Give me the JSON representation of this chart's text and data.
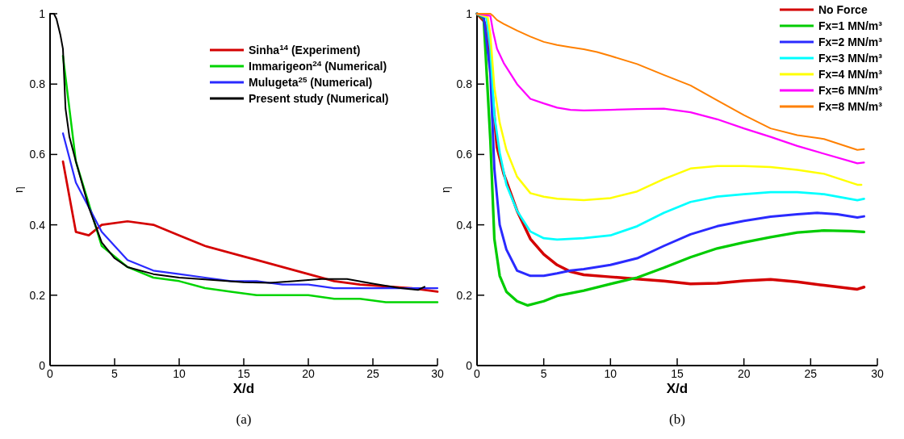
{
  "chart_data": [
    {
      "type": "line",
      "xlabel": "X/d",
      "ylabel": "η",
      "annotations": [
        "(a)"
      ],
      "xlim": [
        0,
        30
      ],
      "ylim": [
        0,
        1
      ],
      "xticks": [
        0,
        5,
        10,
        15,
        20,
        25,
        30
      ],
      "yticks": [
        0,
        0.2,
        0.4,
        0.6,
        0.8,
        1
      ],
      "grid": false,
      "legend": "top right",
      "marker": "none",
      "line_style": "solid",
      "series": [
        {
          "name": "Sinha$^{14}$ (Experiment)",
          "color": "#d40000",
          "x": [
            1,
            2,
            3,
            4,
            6,
            8,
            10,
            12,
            15,
            16,
            18,
            20,
            22,
            24,
            26,
            28,
            30
          ],
          "values": [
            0.58,
            0.38,
            0.37,
            0.4,
            0.41,
            0.4,
            0.37,
            0.34,
            0.31,
            0.3,
            0.28,
            0.26,
            0.24,
            0.23,
            0.225,
            0.22,
            0.21
          ]
        },
        {
          "name": "Immarigeon$^{24}$ (Numerical)",
          "color": "#00d400",
          "x": [
            1,
            2,
            3,
            4,
            6,
            8,
            10,
            12,
            14,
            16,
            18,
            20,
            22,
            24,
            26,
            28,
            30
          ],
          "values": [
            0.88,
            0.58,
            0.46,
            0.34,
            0.28,
            0.25,
            0.24,
            0.22,
            0.21,
            0.2,
            0.2,
            0.2,
            0.19,
            0.19,
            0.18,
            0.18,
            0.18
          ]
        },
        {
          "name": "Mulugeta$^{25}$ (Numerical)",
          "color": "#2a2aff",
          "x": [
            1,
            2,
            3,
            4,
            6,
            8,
            10,
            12,
            14,
            16,
            18,
            20,
            22,
            24,
            26,
            28,
            30
          ],
          "values": [
            0.66,
            0.52,
            0.45,
            0.38,
            0.3,
            0.27,
            0.26,
            0.25,
            0.24,
            0.24,
            0.23,
            0.23,
            0.22,
            0.22,
            0.22,
            0.22,
            0.22
          ]
        },
        {
          "name": "Present study (Numerical)",
          "color": "#000000",
          "x": [
            0,
            0.3,
            0.5,
            0.8,
            1,
            1.2,
            1.5,
            2,
            3,
            4,
            5,
            6,
            8,
            10,
            12,
            15,
            17,
            19,
            21,
            23,
            25,
            27,
            28.5,
            29
          ],
          "values": [
            1,
            1,
            0.985,
            0.94,
            0.9,
            0.73,
            0.65,
            0.58,
            0.45,
            0.35,
            0.305,
            0.28,
            0.26,
            0.25,
            0.245,
            0.237,
            0.235,
            0.24,
            0.246,
            0.246,
            0.233,
            0.221,
            0.215,
            0.224
          ]
        }
      ]
    },
    {
      "type": "line",
      "xlabel": "X/d",
      "ylabel": "η",
      "annotations": [
        "(b)"
      ],
      "xlim": [
        0,
        30
      ],
      "ylim": [
        0,
        1
      ],
      "xticks": [
        0,
        5,
        10,
        15,
        20,
        25,
        30
      ],
      "yticks": [
        0,
        0.2,
        0.4,
        0.6,
        0.8,
        1
      ],
      "grid": false,
      "legend": "top right",
      "marker": "none",
      "line_style": "solid",
      "series": [
        {
          "name": "No Force",
          "color": "#d40000",
          "x": [
            0,
            0.5,
            0.8,
            1.2,
            1.5,
            2,
            3,
            4,
            5,
            6,
            7,
            8,
            10,
            12,
            14,
            16,
            18,
            20,
            22,
            24,
            26,
            28.5,
            29
          ],
          "values": [
            1,
            0.98,
            0.95,
            0.75,
            0.62,
            0.545,
            0.44,
            0.36,
            0.316,
            0.286,
            0.267,
            0.258,
            0.252,
            0.246,
            0.24,
            0.232,
            0.234,
            0.241,
            0.245,
            0.238,
            0.228,
            0.217,
            0.223
          ]
        },
        {
          "name": "Fx=1 MN/m³",
          "color": "#00cc00",
          "x": [
            0,
            0.5,
            1,
            1.3,
            1.7,
            2.2,
            3,
            3.8,
            5,
            6,
            8,
            10,
            12,
            14,
            16,
            18,
            20,
            22,
            24,
            26,
            28,
            29
          ],
          "values": [
            1,
            0.986,
            0.64,
            0.36,
            0.255,
            0.21,
            0.183,
            0.171,
            0.183,
            0.198,
            0.213,
            0.232,
            0.25,
            0.278,
            0.308,
            0.333,
            0.35,
            0.365,
            0.378,
            0.384,
            0.382,
            0.38
          ]
        },
        {
          "name": "Fx=2 MN/m³",
          "color": "#2a2aff",
          "x": [
            0,
            0.5,
            1,
            1.3,
            1.7,
            2.2,
            3,
            4,
            5,
            6,
            7,
            8,
            10,
            12,
            14,
            16,
            18,
            20,
            22,
            24,
            25.5,
            27,
            28.5,
            29
          ],
          "values": [
            1,
            0.99,
            0.83,
            0.56,
            0.4,
            0.33,
            0.27,
            0.255,
            0.255,
            0.262,
            0.27,
            0.274,
            0.286,
            0.305,
            0.34,
            0.373,
            0.396,
            0.411,
            0.423,
            0.43,
            0.434,
            0.43,
            0.421,
            0.424
          ]
        },
        {
          "name": "Fx=3 MN/m³",
          "color": "#00ffff",
          "x": [
            0,
            0.7,
            1,
            1.3,
            1.7,
            2.2,
            3,
            4,
            5,
            6,
            8,
            10,
            12,
            14,
            16,
            18,
            20,
            22,
            24,
            26,
            28.5,
            29
          ],
          "values": [
            1,
            0.99,
            0.9,
            0.71,
            0.605,
            0.514,
            0.44,
            0.381,
            0.362,
            0.358,
            0.362,
            0.37,
            0.396,
            0.434,
            0.465,
            0.48,
            0.487,
            0.493,
            0.493,
            0.487,
            0.47,
            0.474
          ]
        },
        {
          "name": "Fx=4 MN/m³",
          "color": "#ffff00",
          "x": [
            0,
            0.8,
            1,
            1.3,
            1.7,
            2.2,
            3,
            4,
            5,
            6,
            8,
            10,
            12,
            14,
            16,
            18,
            20,
            22,
            24,
            26,
            28.5,
            28.8
          ],
          "values": [
            1,
            0.99,
            0.94,
            0.79,
            0.69,
            0.613,
            0.537,
            0.49,
            0.48,
            0.474,
            0.47,
            0.476,
            0.495,
            0.53,
            0.56,
            0.567,
            0.567,
            0.564,
            0.556,
            0.545,
            0.514,
            0.514
          ]
        },
        {
          "name": "Fx=6 MN/m³",
          "color": "#ff00ff",
          "x": [
            0,
            1,
            1.2,
            1.5,
            2,
            3,
            4,
            5,
            6,
            7,
            8,
            10,
            12,
            14,
            16,
            18,
            20,
            22,
            24,
            26,
            28.5,
            29
          ],
          "values": [
            1,
            0.994,
            0.95,
            0.9,
            0.86,
            0.8,
            0.758,
            0.745,
            0.733,
            0.727,
            0.725,
            0.727,
            0.729,
            0.73,
            0.72,
            0.7,
            0.674,
            0.65,
            0.624,
            0.602,
            0.575,
            0.577
          ]
        },
        {
          "name": "Fx=8 MN/m³",
          "color": "#ff8000",
          "x": [
            0,
            1,
            1.2,
            1.5,
            2,
            3,
            4,
            5,
            6,
            7,
            8,
            9,
            10,
            12,
            14,
            16,
            18,
            20,
            22,
            24,
            26,
            28.5,
            29
          ],
          "values": [
            1,
            1,
            0.994,
            0.982,
            0.971,
            0.952,
            0.935,
            0.92,
            0.911,
            0.905,
            0.899,
            0.891,
            0.88,
            0.857,
            0.826,
            0.796,
            0.754,
            0.712,
            0.674,
            0.655,
            0.644,
            0.613,
            0.615
          ]
        }
      ]
    }
  ]
}
